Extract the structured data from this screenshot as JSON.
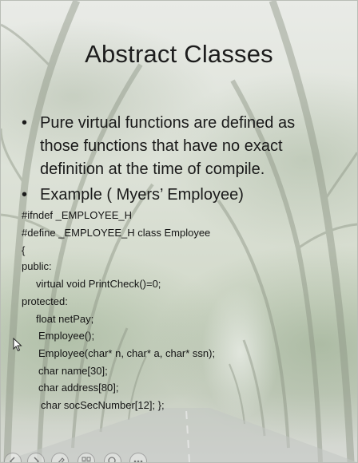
{
  "slide": {
    "title": "Abstract Classes",
    "bullets": [
      {
        "symbol": "•",
        "lines": [
          "Pure virtual functions are defined as",
          "those functions that have no exact",
          "definition at the time of compile."
        ]
      },
      {
        "symbol": "•",
        "lines": [
          "Example ( Myers’ Employee)"
        ]
      }
    ],
    "code": [
      "#ifndef _EMPLOYEE_H",
      "#define _EMPLOYEE_H class Employee",
      "{",
      "public:",
      "virtual void PrintCheck()=0;",
      "protected:",
      "float netPay;",
      "Employee();",
      "Employee(char* n, char* a, char* ssn);",
      "char name[30];",
      "char address[80];",
      "char socSecNumber[12]; };"
    ]
  },
  "controls": [
    {
      "icon": "previous-slide-icon"
    },
    {
      "icon": "next-slide-icon"
    },
    {
      "icon": "pen-icon"
    },
    {
      "icon": "slides-grid-icon"
    },
    {
      "icon": "zoom-icon"
    },
    {
      "icon": "more-options-icon"
    }
  ],
  "colors": {
    "text": "#1a1a1a",
    "background": "#dde2d8"
  }
}
